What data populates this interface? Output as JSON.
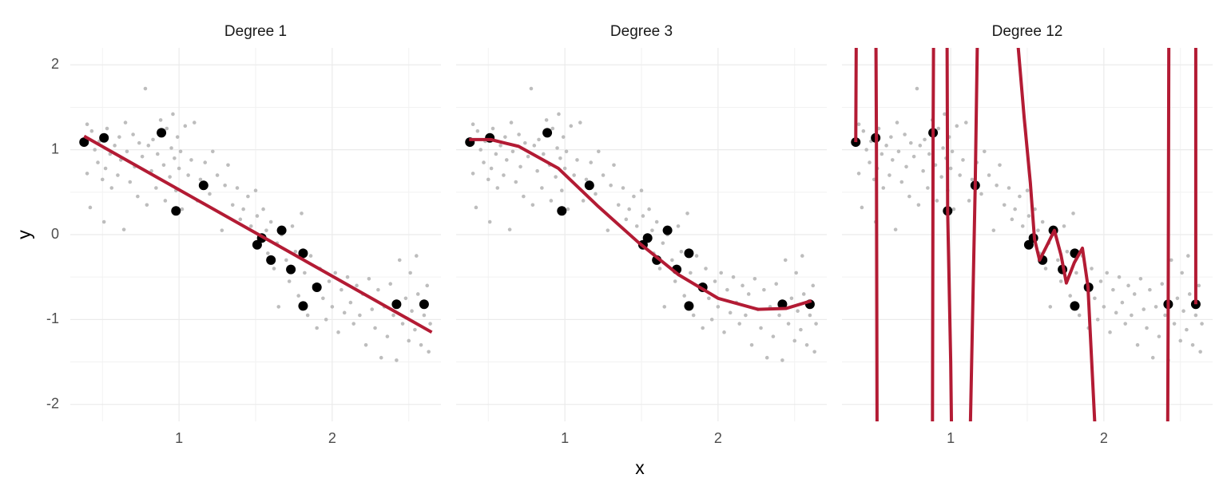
{
  "chart_data": {
    "type": "facet-scatter-fit",
    "x_label": "x",
    "y_label": "y",
    "xlim": [
      0.29,
      2.71
    ],
    "ylim": [
      -2.2,
      2.2
    ],
    "xticks": [
      1,
      2
    ],
    "yticks": [
      -2,
      -1,
      0,
      1,
      2
    ],
    "x_minor_grid": [
      0.5,
      1.5,
      2.5
    ],
    "y_minor_grid": [
      -1.5,
      -0.5,
      0.5,
      1.5
    ],
    "grid": true,
    "test": {
      "color": "#bdbdbd",
      "x": [
        0.4,
        0.4,
        0.42,
        0.43,
        0.45,
        0.47,
        0.48,
        0.5,
        0.51,
        0.52,
        0.53,
        0.55,
        0.56,
        0.58,
        0.6,
        0.61,
        0.62,
        0.64,
        0.65,
        0.66,
        0.68,
        0.7,
        0.71,
        0.73,
        0.74,
        0.76,
        0.78,
        0.79,
        0.8,
        0.82,
        0.83,
        0.85,
        0.86,
        0.88,
        0.9,
        0.91,
        0.92,
        0.94,
        0.95,
        0.96,
        0.97,
        0.98,
        0.99,
        1.0,
        1.01,
        1.02,
        1.04,
        1.06,
        1.08,
        1.1,
        1.12,
        1.14,
        1.17,
        1.2,
        1.22,
        1.25,
        1.28,
        1.3,
        1.32,
        1.35,
        1.38,
        1.4,
        1.42,
        1.45,
        1.47,
        1.5,
        1.51,
        1.53,
        1.55,
        1.57,
        1.58,
        1.6,
        1.62,
        1.64,
        1.65,
        1.67,
        1.7,
        1.72,
        1.74,
        1.76,
        1.78,
        1.8,
        1.82,
        1.84,
        1.86,
        1.88,
        1.9,
        1.92,
        1.94,
        1.96,
        1.98,
        2.0,
        2.02,
        2.04,
        2.06,
        2.08,
        2.1,
        2.12,
        2.14,
        2.16,
        2.18,
        2.2,
        2.22,
        2.24,
        2.26,
        2.28,
        2.3,
        2.32,
        2.34,
        2.36,
        2.38,
        2.4,
        2.42,
        2.44,
        2.46,
        2.48,
        2.5,
        2.51,
        2.52,
        2.54,
        2.55,
        2.56,
        2.58,
        2.6,
        2.62,
        2.63,
        2.64
      ],
      "y": [
        1.3,
        0.72,
        0.32,
        1.22,
        1.0,
        0.85,
        1.1,
        0.65,
        0.15,
        0.78,
        1.25,
        0.95,
        0.55,
        1.05,
        0.7,
        1.15,
        0.88,
        0.06,
        1.32,
        0.98,
        0.62,
        1.18,
        0.8,
        0.45,
        1.08,
        0.92,
        1.72,
        0.35,
        1.05,
        0.75,
        1.12,
        0.55,
        0.95,
        1.35,
        0.82,
        0.4,
        1.25,
        0.68,
        1.02,
        1.42,
        0.9,
        0.52,
        1.15,
        0.78,
        0.98,
        0.3,
        1.28,
        0.7,
        0.88,
        1.32,
        0.4,
        0.65,
        0.85,
        0.48,
        0.98,
        0.7,
        0.05,
        0.58,
        0.82,
        0.35,
        0.55,
        0.18,
        0.3,
        0.45,
        0.1,
        0.52,
        0.22,
        -0.05,
        0.3,
        0.05,
        -0.22,
        0.15,
        -0.4,
        -0.1,
        -0.85,
        0.0,
        -0.3,
        -0.55,
        0.1,
        -0.2,
        -0.72,
        0.25,
        -0.45,
        -0.95,
        -0.25,
        -0.6,
        -1.1,
        -0.4,
        -0.75,
        -1.0,
        -0.55,
        -0.85,
        -0.45,
        -1.15,
        -0.65,
        -0.92,
        -0.5,
        -0.8,
        -1.05,
        -0.6,
        -0.95,
        -0.7,
        -1.3,
        -0.52,
        -0.88,
        -1.1,
        -0.65,
        -1.45,
        -0.85,
        -1.2,
        -0.58,
        -0.95,
        -1.48,
        -0.3,
        -1.05,
        -0.75,
        -1.25,
        -0.45,
        -0.9,
        -1.12,
        -0.25,
        -0.7,
        -1.3,
        -0.95,
        -0.6,
        -1.38,
        -1.05
      ]
    },
    "train": {
      "color": "#000000",
      "x": [
        0.38,
        0.51,
        0.885,
        0.98,
        1.16,
        1.51,
        1.54,
        1.6,
        1.67,
        1.73,
        1.81,
        1.81,
        1.9,
        2.42,
        2.6
      ],
      "y": [
        1.09,
        1.14,
        1.2,
        0.28,
        0.58,
        -0.12,
        -0.04,
        -0.3,
        0.05,
        -0.41,
        -0.22,
        -0.84,
        -0.62,
        -0.82,
        -0.82
      ]
    },
    "panels": [
      {
        "title": "Degree 1",
        "fit": {
          "color": "#b31b34",
          "x": [
            0.38,
            2.65
          ],
          "y": [
            1.16,
            -1.15
          ]
        }
      },
      {
        "title": "Degree 3",
        "fit": {
          "color": "#b31b34",
          "x": [
            0.375,
            0.516,
            0.698,
            0.958,
            1.219,
            1.479,
            1.74,
            2.0,
            2.26,
            2.443,
            2.61
          ],
          "y": [
            1.12,
            1.12,
            1.04,
            0.78,
            0.33,
            -0.09,
            -0.47,
            -0.75,
            -0.88,
            -0.87,
            -0.78
          ]
        }
      },
      {
        "title": "Degree 12",
        "fit": {
          "color": "#b31b34",
          "x": [
            0.38,
            0.385,
            0.51,
            0.515,
            0.52,
            0.88,
            0.885,
            0.89,
            0.975,
            0.98,
            1.0,
            1.01,
            1.12,
            1.16,
            1.18,
            1.43,
            1.44,
            1.48,
            1.52,
            1.547,
            1.58,
            1.625,
            1.677,
            1.72,
            1.755,
            1.807,
            1.86,
            1.896,
            1.94,
            1.95,
            2.41,
            2.415,
            2.42,
            2.425,
            2.6,
            2.6
          ],
          "y": [
            1.09,
            3,
            3,
            1.14,
            -3,
            -3,
            1.2,
            3,
            3,
            0.28,
            -1.5,
            -3,
            -3,
            0.58,
            3,
            3,
            2.22,
            1.37,
            0.61,
            -0.05,
            -0.3,
            -0.14,
            0.05,
            -0.24,
            -0.57,
            -0.33,
            -0.16,
            -0.61,
            -2.2,
            -3,
            -3,
            -3,
            -0.82,
            3,
            3,
            -0.82
          ]
        }
      }
    ]
  }
}
